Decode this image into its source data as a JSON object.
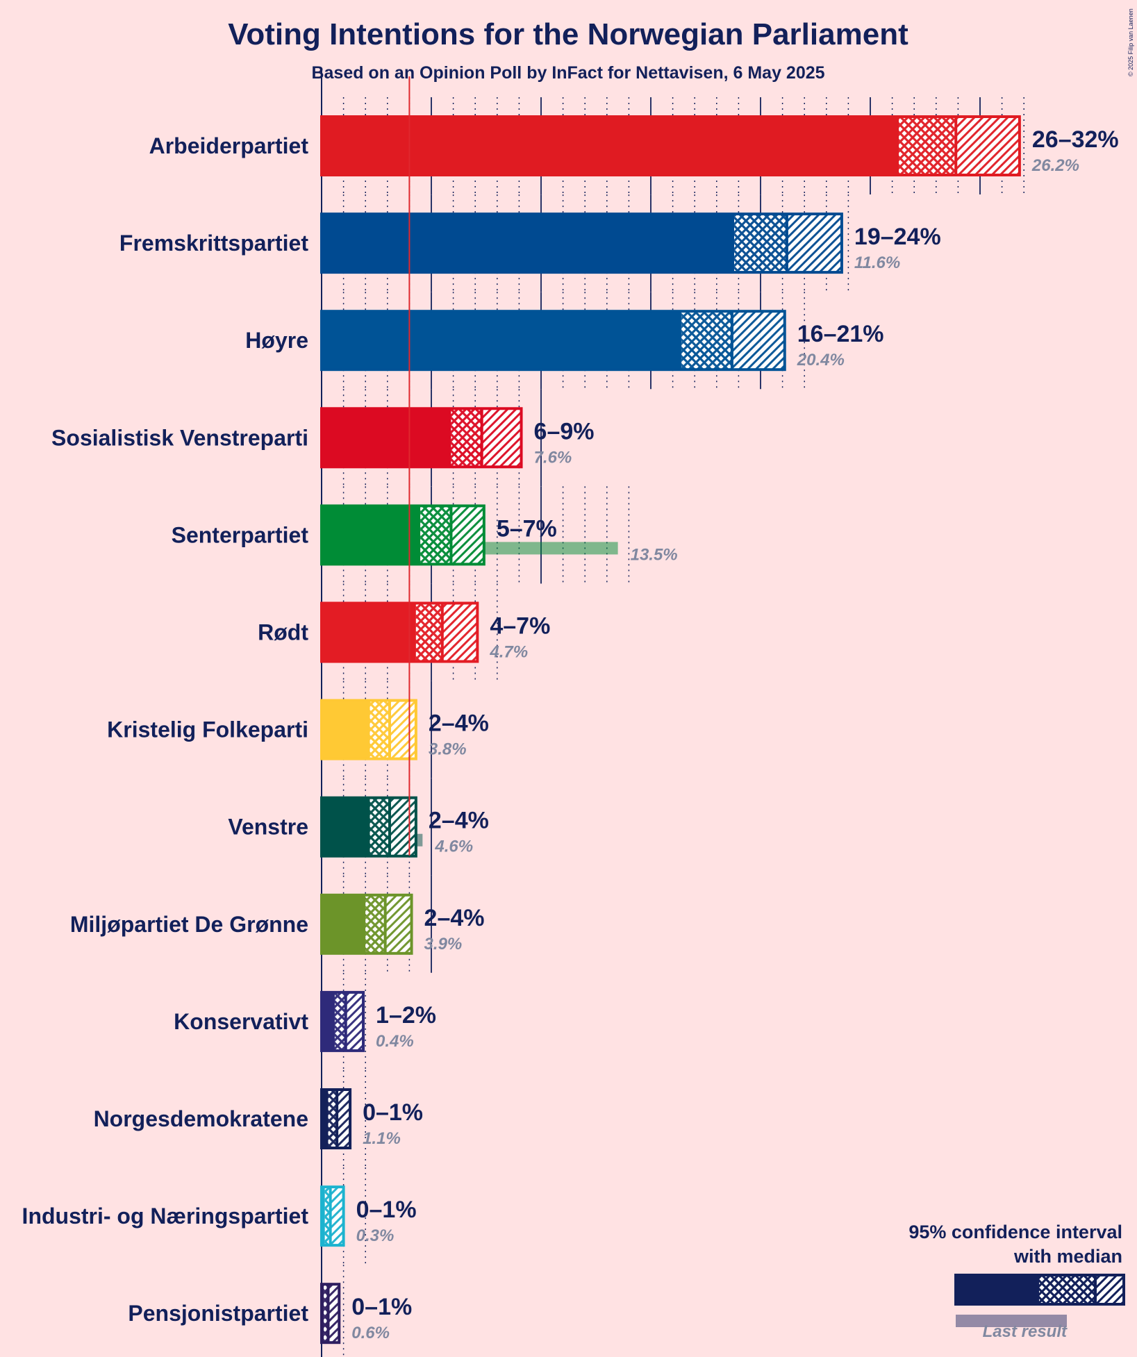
{
  "title": "Voting Intentions for the Norwegian Parliament",
  "subtitle": "Based on an Opinion Poll by InFact for Nettavisen, 6 May 2025",
  "copyright": "© 2025 Filip van Laenen",
  "legend": {
    "title_line1": "95% confidence interval",
    "title_line2": "with median",
    "last_result_label": "Last result"
  },
  "colors": {
    "background": "#FFE2E3",
    "text": "#12205A",
    "last_result_text": "#8088A0",
    "threshold_line": "#E0282E"
  },
  "chart_data": {
    "type": "bar",
    "orientation": "horizontal",
    "x_unit": "percent",
    "xlim": [
      0,
      32
    ],
    "threshold": 4,
    "series_names": [
      "95% confidence interval (low)",
      "95% confidence interval (high)",
      "Median",
      "Last result"
    ],
    "parties": [
      {
        "name": "Arbeiderpartiet",
        "range_label": "26–32%",
        "last_label": "26.2%",
        "low": 26.3,
        "median": 28.9,
        "high": 31.8,
        "last": 26.2,
        "color": "#E01B22"
      },
      {
        "name": "Fremskrittspartiet",
        "range_label": "19–24%",
        "last_label": "11.6%",
        "low": 18.8,
        "median": 21.2,
        "high": 23.7,
        "last": 11.6,
        "color": "#004A91"
      },
      {
        "name": "Høyre",
        "range_label": "16–21%",
        "last_label": "20.4%",
        "low": 16.4,
        "median": 18.7,
        "high": 21.1,
        "last": 20.4,
        "color": "#005396"
      },
      {
        "name": "Sosialistisk Venstreparti",
        "range_label": "6–9%",
        "last_label": "7.6%",
        "low": 5.9,
        "median": 7.3,
        "high": 9.1,
        "last": 7.6,
        "color": "#DC0A22"
      },
      {
        "name": "Senterpartiet",
        "range_label": "5–7%",
        "last_label": "13.5%",
        "low": 4.5,
        "median": 5.9,
        "high": 7.4,
        "last": 13.5,
        "color": "#008C36"
      },
      {
        "name": "Rødt",
        "range_label": "4–7%",
        "last_label": "4.7%",
        "low": 4.3,
        "median": 5.5,
        "high": 7.1,
        "last": 4.7,
        "color": "#E31C24"
      },
      {
        "name": "Kristelig Folkeparti",
        "range_label": "2–4%",
        "last_label": "3.8%",
        "low": 2.2,
        "median": 3.1,
        "high": 4.3,
        "last": 3.8,
        "color": "#FFC934"
      },
      {
        "name": "Venstre",
        "range_label": "2–4%",
        "last_label": "4.6%",
        "low": 2.2,
        "median": 3.1,
        "high": 4.3,
        "last": 4.6,
        "color": "#00524A"
      },
      {
        "name": "Miljøpartiet De Grønne",
        "range_label": "2–4%",
        "last_label": "3.9%",
        "low": 2.0,
        "median": 2.9,
        "high": 4.1,
        "last": 3.9,
        "color": "#6C9429"
      },
      {
        "name": "Konservativt",
        "range_label": "1–2%",
        "last_label": "0.4%",
        "low": 0.6,
        "median": 1.1,
        "high": 1.9,
        "last": 0.4,
        "color": "#2E2A7A"
      },
      {
        "name": "Norgesdemokratene",
        "range_label": "0–1%",
        "last_label": "1.1%",
        "low": 0.3,
        "median": 0.7,
        "high": 1.3,
        "last": 1.1,
        "color": "#14215A"
      },
      {
        "name": "Industri- og Næringspartiet",
        "range_label": "0–1%",
        "last_label": "0.3%",
        "low": 0.15,
        "median": 0.4,
        "high": 1.0,
        "last": 0.3,
        "color": "#1CB3CF"
      },
      {
        "name": "Pensjonistpartiet",
        "range_label": "0–1%",
        "last_label": "0.6%",
        "low": 0.1,
        "median": 0.3,
        "high": 0.8,
        "last": 0.6,
        "color": "#2E1E60"
      }
    ]
  }
}
